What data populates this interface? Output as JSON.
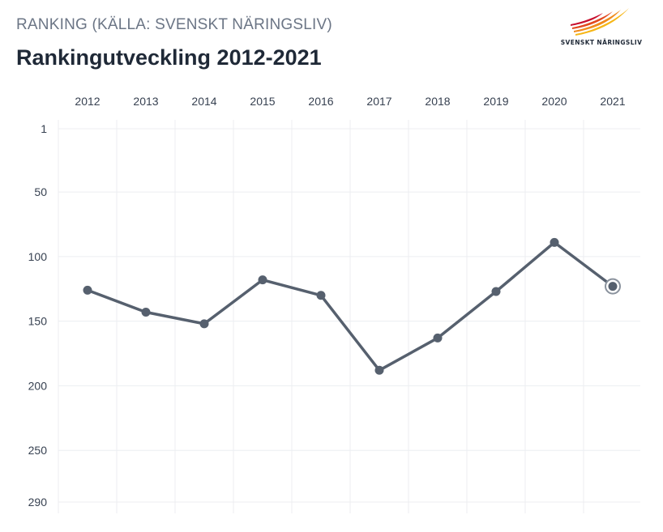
{
  "header": {
    "subtitle": "RANKING (KÄLLA: SVENSKT NÄRINGSLIV)",
    "title": "Rankingutveckling 2012-2021"
  },
  "logo": {
    "text": "SVENSKT NÄRINGSLIV",
    "colors": [
      "#f6b616",
      "#f08a1c",
      "#e2491f",
      "#c8102e"
    ]
  },
  "chart_data": {
    "type": "line",
    "title": "Rankingutveckling 2012-2021",
    "x": [
      "2012",
      "2013",
      "2014",
      "2015",
      "2016",
      "2017",
      "2018",
      "2019",
      "2020",
      "2021"
    ],
    "series": [
      {
        "values": [
          126,
          143,
          152,
          118,
          130,
          188,
          163,
          127,
          89,
          123
        ]
      }
    ],
    "y_ticks": [
      1,
      50,
      100,
      150,
      200,
      250,
      290
    ],
    "ylim": [
      1,
      290
    ],
    "y_reversed": true,
    "x_axis_position": "top",
    "grid": true,
    "line_color": "#56606e",
    "highlight_last_point": true
  }
}
